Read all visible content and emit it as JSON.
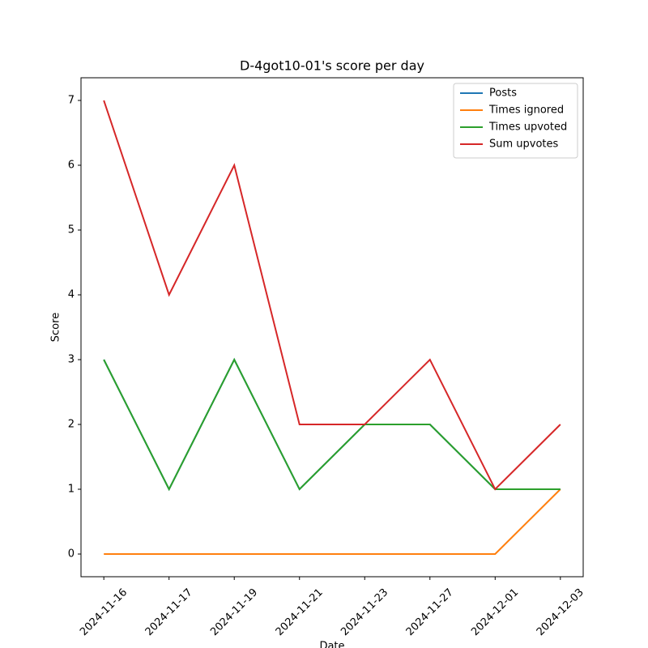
{
  "chart_data": {
    "type": "line",
    "title": "D-4got10-01's score per day",
    "x_label": "Date",
    "y_label": "Score",
    "categories": [
      "2024-11-16",
      "2024-11-17",
      "2024-11-19",
      "2024-11-21",
      "2024-11-23",
      "2024-11-27",
      "2024-12-01",
      "2024-12-03"
    ],
    "series": [
      {
        "name": "Posts",
        "color": "#1f77b4",
        "values": [
          3,
          1,
          3,
          1,
          2,
          2,
          1,
          1
        ]
      },
      {
        "name": "Times ignored",
        "color": "#ff7f0e",
        "values": [
          0,
          0,
          0,
          0,
          0,
          0,
          0,
          1
        ]
      },
      {
        "name": "Times upvoted",
        "color": "#2ca02c",
        "values": [
          3,
          1,
          3,
          1,
          2,
          2,
          1,
          1
        ]
      },
      {
        "name": "Sum upvotes",
        "color": "#d62728",
        "values": [
          7,
          4,
          6,
          2,
          2,
          3,
          1,
          2
        ]
      }
    ],
    "ylim": [
      -0.35,
      7.35
    ],
    "yticks": [
      0,
      1,
      2,
      3,
      4,
      5,
      6,
      7
    ],
    "legend": "upper right"
  }
}
